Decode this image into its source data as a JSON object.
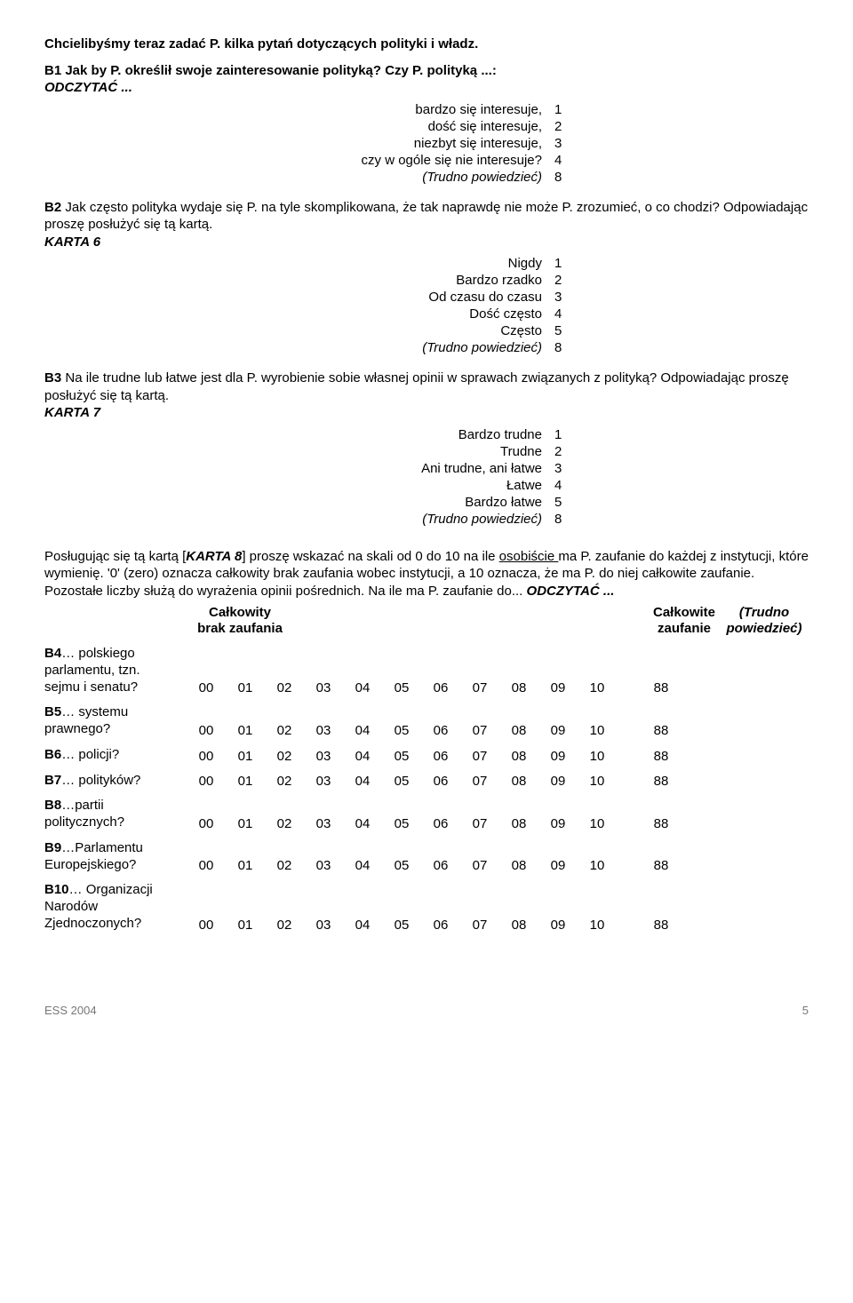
{
  "intro": "Chcielibyśmy teraz zadać P. kilka pytań dotyczących polityki i władz.",
  "b1": {
    "question": "B1 Jak by P. określił swoje zainteresowanie polityką? Czy P. polityką ...:",
    "readout": "ODCZYTAĆ ...",
    "opts": [
      {
        "label": "bardzo się interesuje,",
        "val": "1"
      },
      {
        "label": "dość się interesuje,",
        "val": "2"
      },
      {
        "label": "niezbyt się interesuje,",
        "val": "3"
      },
      {
        "label": "czy w ogóle się nie interesuje?",
        "val": "4"
      },
      {
        "label": "(Trudno powiedzieć)",
        "val": "8",
        "italic": true
      }
    ]
  },
  "b2": {
    "q_prefix": "B2",
    "q_text": " Jak często polityka wydaje się P. na tyle skomplikowana, że tak naprawdę nie może P. zrozumieć, o co chodzi? Odpowiadając proszę posłużyć się tą kartą.",
    "karta": "KARTA 6",
    "opts": [
      {
        "label": "Nigdy",
        "val": "1"
      },
      {
        "label": "Bardzo rzadko",
        "val": "2"
      },
      {
        "label": "Od czasu do czasu",
        "val": "3"
      },
      {
        "label": "Dość często",
        "val": "4"
      },
      {
        "label": "Często",
        "val": "5"
      },
      {
        "label": "(Trudno powiedzieć)",
        "val": "8",
        "italic": true
      }
    ]
  },
  "b3": {
    "q_prefix": "B3",
    "q_text": "  Na ile trudne lub łatwe jest dla P. wyrobienie sobie własnej opinii w sprawach związanych z polityką? Odpowiadając proszę posłużyć się tą kartą.",
    "karta": "KARTA 7",
    "opts": [
      {
        "label": "Bardzo trudne",
        "val": "1"
      },
      {
        "label": "Trudne",
        "val": "2"
      },
      {
        "label": "Ani trudne, ani łatwe",
        "val": "3"
      },
      {
        "label": "Łatwe",
        "val": "4"
      },
      {
        "label": "Bardzo łatwe",
        "val": "5"
      },
      {
        "label": "(Trudno powiedzieć)",
        "val": "8",
        "italic": true
      }
    ]
  },
  "trust": {
    "intro_a": "Posługując się tą kartą [",
    "karta": "KARTA 8",
    "intro_b": "] proszę wskazać na skali od 0 do 10 na ile ",
    "osobiscie": "osobiście ",
    "intro_c": "ma P. zaufanie do każdej z instytucji, które wymienię. '0' (zero) oznacza całkowity brak zaufania wobec instytucji, a 10 oznacza, że ma P. do niej całkowite zaufanie. Pozostałe liczby służą do wyrażenia opinii pośrednich. Na ile ma P. zaufanie do... ",
    "readout": "ODCZYTAĆ ...",
    "header_left_l1": "Całkowity",
    "header_left_l2": "brak zaufania",
    "header_right_l1": "Całkowite",
    "header_right_l2": "zaufanie",
    "header_dk_l1": "(Trudno",
    "header_dk_l2": "powiedzieć)",
    "scale": [
      "00",
      "01",
      "02",
      "03",
      "04",
      "05",
      "06",
      "07",
      "08",
      "09",
      "10"
    ],
    "dk": "88",
    "items": [
      {
        "code": "B4",
        "label_lines": [
          "… polskiego",
          "parlamentu, tzn.",
          "sejmu i senatu?"
        ]
      },
      {
        "code": "B5",
        "label_lines": [
          "… systemu",
          "prawnego?"
        ]
      },
      {
        "code": "B6",
        "label_lines": [
          "… policji?"
        ]
      },
      {
        "code": "B7",
        "label_lines": [
          "… polityków?"
        ]
      },
      {
        "code": "B8",
        "label_lines": [
          "…partii",
          "politycznych?"
        ]
      },
      {
        "code": "B9",
        "label_lines": [
          "…Parlamentu",
          "Europejskiego?"
        ]
      },
      {
        "code": "B10",
        "label_lines": [
          "… Organizacji",
          "Narodów",
          "Zjednoczonych?"
        ]
      }
    ]
  },
  "footer": {
    "left": "ESS 2004",
    "page": "5"
  }
}
